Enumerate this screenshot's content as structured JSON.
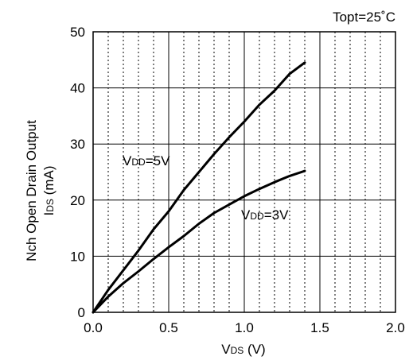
{
  "chart_data": {
    "type": "line",
    "annotation": "Topt=25˚C",
    "xlabel": {
      "main": "V",
      "sub": "DS",
      "rest": " (V)"
    },
    "ylabel": {
      "line1": "Nch Open Drain Output",
      "main": "I",
      "sub": "DS",
      "rest": " (mA)"
    },
    "xlim": [
      0,
      2.0
    ],
    "ylim": [
      0,
      50
    ],
    "x_ticks": [
      0,
      0.5,
      1.0,
      1.5,
      2.0
    ],
    "x_tick_labels": [
      "0.0",
      "0.5",
      "1.0",
      "1.5",
      "2.0"
    ],
    "y_ticks": [
      0,
      10,
      20,
      30,
      40,
      50
    ],
    "y_tick_labels": [
      "0",
      "10",
      "20",
      "30",
      "40",
      "50"
    ],
    "x_minor_step": 0.1,
    "grid": true,
    "series": [
      {
        "name": "VDD=5V",
        "label": {
          "main": "V",
          "sub": "DD",
          "rest": "=5V"
        },
        "x": [
          0,
          0.1,
          0.2,
          0.3,
          0.4,
          0.5,
          0.6,
          0.7,
          0.8,
          0.9,
          1.0,
          1.1,
          1.2,
          1.3,
          1.4
        ],
        "y": [
          0,
          4,
          7.5,
          11,
          14.8,
          18,
          21.8,
          25,
          28.2,
          31.2,
          34,
          37,
          39.5,
          42.5,
          44.5
        ]
      },
      {
        "name": "VDD=3V",
        "label": {
          "main": "V",
          "sub": "DD",
          "rest": "=3V"
        },
        "x": [
          0,
          0.1,
          0.2,
          0.3,
          0.4,
          0.5,
          0.6,
          0.7,
          0.8,
          0.9,
          1.0,
          1.1,
          1.2,
          1.3,
          1.4
        ],
        "y": [
          0,
          2.8,
          5.2,
          7.3,
          9.5,
          11.6,
          13.6,
          15.8,
          17.7,
          19.2,
          20.7,
          22,
          23.2,
          24.3,
          25.2
        ]
      }
    ]
  }
}
